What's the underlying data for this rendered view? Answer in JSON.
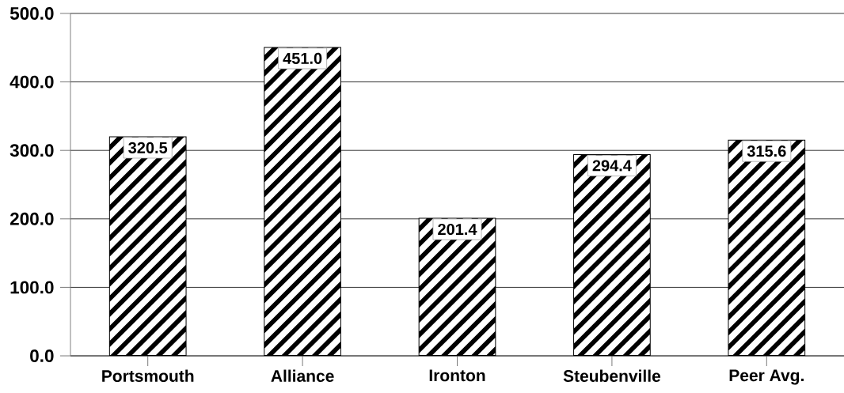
{
  "chart_data": {
    "type": "bar",
    "categories": [
      "Portsmouth",
      "Alliance",
      "Ironton",
      "Steubenville",
      "Peer Avg."
    ],
    "values": [
      320.5,
      451.0,
      201.4,
      294.4,
      315.6
    ],
    "value_labels": [
      "320.5",
      "451.0",
      "201.4",
      "294.4",
      "315.6"
    ],
    "color": "#000000",
    "ylim": [
      0,
      500
    ],
    "yticks": [
      {
        "value": 0,
        "label": "0.0"
      },
      {
        "value": 100,
        "label": "100.0"
      },
      {
        "value": 200,
        "label": "200.0"
      },
      {
        "value": 300,
        "label": "300.0"
      },
      {
        "value": 400,
        "label": "400.0"
      },
      {
        "value": 500,
        "label": "500.0"
      }
    ],
    "grid": "y"
  }
}
